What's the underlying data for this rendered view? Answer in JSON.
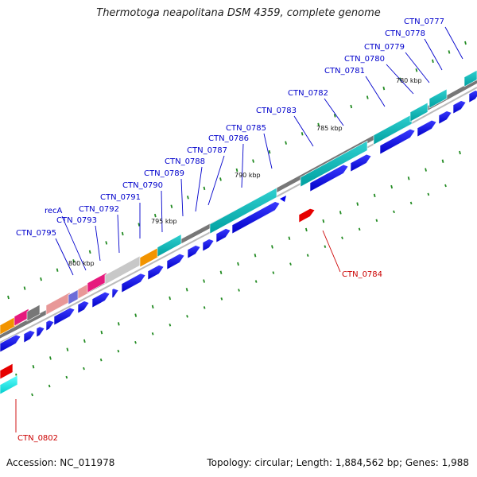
{
  "title": "Thermotoga neapolitana DSM 4359, complete genome",
  "footer": {
    "accession": "Accession: NC_011978",
    "stats": "Topology: circular; Length: 1,884,562 bp; Genes: 1,988"
  },
  "tick_labels": [
    "780 kbp",
    "785 kbp",
    "790 kbp",
    "795 kbp",
    "800 kbp"
  ],
  "gene_labels": [
    "CTN_0777",
    "CTN_0778",
    "CTN_0779",
    "CTN_0780",
    "CTN_0781",
    "CTN_0782",
    "CTN_0783",
    "CTN_0785",
    "CTN_0786",
    "CTN_0787",
    "CTN_0788",
    "CTN_0789",
    "CTN_0790",
    "CTN_0791",
    "CTN_0792",
    "recA",
    "CTN_0793",
    "CTN_0795"
  ],
  "reverse_gene_labels": [
    "CTN_0784",
    "CTN_0802"
  ],
  "colors": {
    "label_blue": "#0000cc",
    "label_red": "#cc0000",
    "cds": "#0000ee",
    "rna": "#00c8c8",
    "backbone": "#888888",
    "tick": "#228b22"
  }
}
